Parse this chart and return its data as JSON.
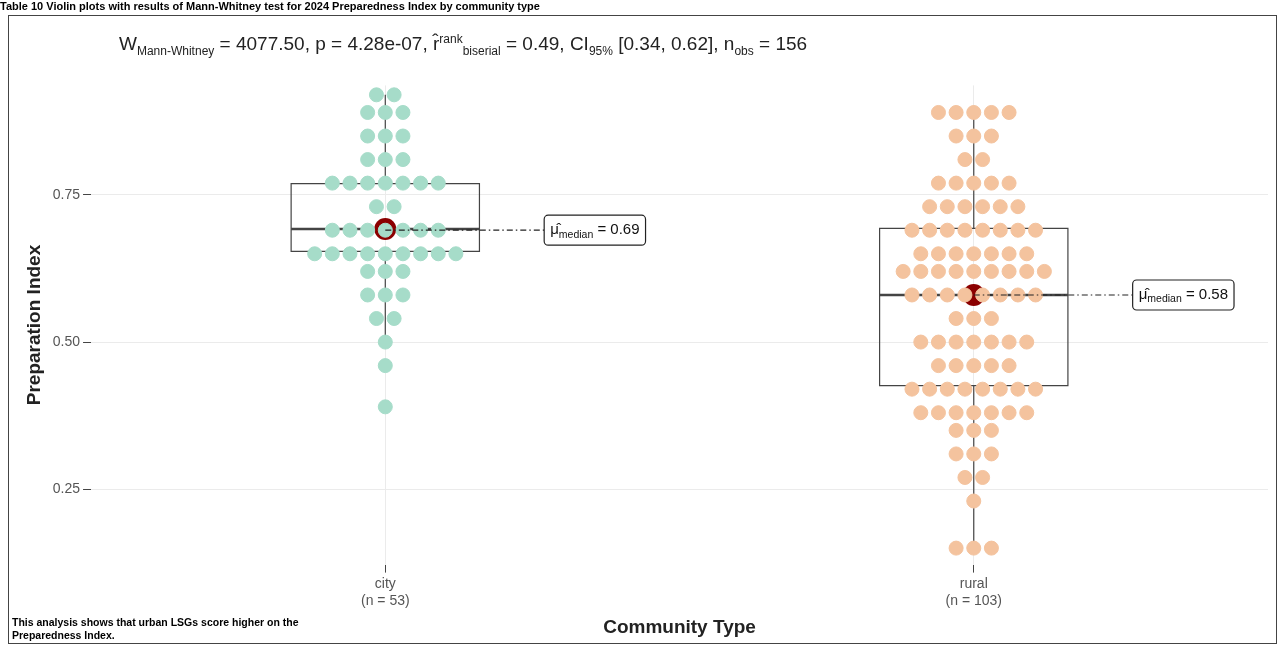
{
  "chart_data": {
    "type": "box",
    "title": "W$_{Mann-Whitney}$ = 4077.50, p = 4.28e-07, r̂$^{rank}$$_{biserial}$ = 0.49, CI$_{95%}$ [0.34, 0.62], n$_{obs}$ = 156",
    "xlabel": "Community Type",
    "ylabel": "Preparation Index",
    "categories": [
      "city\n(n = 53)",
      "rural\n(n = 103)"
    ],
    "boxes": [
      {
        "low": 0.5,
        "q1": 0.654,
        "median": 0.692,
        "q3": 0.769,
        "high": 0.92
      },
      {
        "low": 0.155,
        "q1": 0.426,
        "median": 0.58,
        "q3": 0.693,
        "high": 0.887
      }
    ],
    "series": [
      {
        "type": "scatter",
        "color": "#a6dcc9",
        "x": [
          "city\n(n = 53)",
          "city\n(n = 53)",
          "city\n(n = 53)",
          "city\n(n = 53)",
          "city\n(n = 53)",
          "city\n(n = 53)",
          "city\n(n = 53)",
          "city\n(n = 53)",
          "city\n(n = 53)",
          "city\n(n = 53)",
          "city\n(n = 53)",
          "city\n(n = 53)",
          "city\n(n = 53)",
          "city\n(n = 53)",
          "city\n(n = 53)",
          "city\n(n = 53)",
          "city\n(n = 53)",
          "city\n(n = 53)",
          "city\n(n = 53)",
          "city\n(n = 53)",
          "city\n(n = 53)",
          "city\n(n = 53)",
          "city\n(n = 53)",
          "city\n(n = 53)",
          "city\n(n = 53)",
          "city\n(n = 53)",
          "city\n(n = 53)",
          "city\n(n = 53)",
          "city\n(n = 53)",
          "city\n(n = 53)",
          "city\n(n = 53)",
          "city\n(n = 53)",
          "city\n(n = 53)",
          "city\n(n = 53)",
          "city\n(n = 53)",
          "city\n(n = 53)",
          "city\n(n = 53)",
          "city\n(n = 53)",
          "city\n(n = 53)",
          "city\n(n = 53)",
          "city\n(n = 53)",
          "city\n(n = 53)",
          "city\n(n = 53)",
          "city\n(n = 53)",
          "city\n(n = 53)",
          "city\n(n = 53)",
          "city\n(n = 53)"
        ],
        "values": [
          0.92,
          0.92,
          0.89,
          0.89,
          0.89,
          0.85,
          0.85,
          0.85,
          0.81,
          0.81,
          0.81,
          0.77,
          0.77,
          0.77,
          0.77,
          0.77,
          0.77,
          0.77,
          0.73,
          0.73,
          0.69,
          0.69,
          0.69,
          0.69,
          0.69,
          0.69,
          0.65,
          0.65,
          0.65,
          0.65,
          0.65,
          0.65,
          0.65,
          0.65,
          0.65,
          0.62,
          0.62,
          0.62,
          0.58,
          0.58,
          0.58,
          0.54,
          0.54,
          0.5,
          0.46,
          0.39,
          0.69
        ]
      },
      {
        "type": "scatter",
        "color": "#f4c39e",
        "x": [
          "rural\n(n = 103)",
          "rural\n(n = 103)",
          "rural\n(n = 103)",
          "rural\n(n = 103)",
          "rural\n(n = 103)",
          "rural\n(n = 103)",
          "rural\n(n = 103)",
          "rural\n(n = 103)",
          "rural\n(n = 103)",
          "rural\n(n = 103)",
          "rural\n(n = 103)",
          "rural\n(n = 103)",
          "rural\n(n = 103)",
          "rural\n(n = 103)",
          "rural\n(n = 103)",
          "rural\n(n = 103)",
          "rural\n(n = 103)",
          "rural\n(n = 103)",
          "rural\n(n = 103)",
          "rural\n(n = 103)",
          "rural\n(n = 103)",
          "rural\n(n = 103)",
          "rural\n(n = 103)",
          "rural\n(n = 103)",
          "rural\n(n = 103)",
          "rural\n(n = 103)",
          "rural\n(n = 103)",
          "rural\n(n = 103)",
          "rural\n(n = 103)",
          "rural\n(n = 103)",
          "rural\n(n = 103)",
          "rural\n(n = 103)",
          "rural\n(n = 103)",
          "rural\n(n = 103)",
          "rural\n(n = 103)",
          "rural\n(n = 103)",
          "rural\n(n = 103)",
          "rural\n(n = 103)",
          "rural\n(n = 103)",
          "rural\n(n = 103)",
          "rural\n(n = 103)",
          "rural\n(n = 103)",
          "rural\n(n = 103)",
          "rural\n(n = 103)",
          "rural\n(n = 103)",
          "rural\n(n = 103)",
          "rural\n(n = 103)",
          "rural\n(n = 103)",
          "rural\n(n = 103)",
          "rural\n(n = 103)",
          "rural\n(n = 103)",
          "rural\n(n = 103)",
          "rural\n(n = 103)",
          "rural\n(n = 103)",
          "rural\n(n = 103)",
          "rural\n(n = 103)",
          "rural\n(n = 103)",
          "rural\n(n = 103)",
          "rural\n(n = 103)",
          "rural\n(n = 103)",
          "rural\n(n = 103)",
          "rural\n(n = 103)",
          "rural\n(n = 103)",
          "rural\n(n = 103)",
          "rural\n(n = 103)",
          "rural\n(n = 103)",
          "rural\n(n = 103)",
          "rural\n(n = 103)",
          "rural\n(n = 103)",
          "rural\n(n = 103)",
          "rural\n(n = 103)",
          "rural\n(n = 103)",
          "rural\n(n = 103)",
          "rural\n(n = 103)",
          "rural\n(n = 103)",
          "rural\n(n = 103)",
          "rural\n(n = 103)",
          "rural\n(n = 103)",
          "rural\n(n = 103)",
          "rural\n(n = 103)",
          "rural\n(n = 103)",
          "rural\n(n = 103)",
          "rural\n(n = 103)",
          "rural\n(n = 103)",
          "rural\n(n = 103)",
          "rural\n(n = 103)",
          "rural\n(n = 103)",
          "rural\n(n = 103)",
          "rural\n(n = 103)",
          "rural\n(n = 103)",
          "rural\n(n = 103)",
          "rural\n(n = 103)",
          "rural\n(n = 103)",
          "rural\n(n = 103)",
          "rural\n(n = 103)"
        ],
        "values": [
          0.89,
          0.89,
          0.89,
          0.89,
          0.89,
          0.85,
          0.85,
          0.85,
          0.81,
          0.81,
          0.77,
          0.77,
          0.77,
          0.77,
          0.77,
          0.73,
          0.73,
          0.73,
          0.73,
          0.73,
          0.73,
          0.69,
          0.69,
          0.69,
          0.69,
          0.69,
          0.69,
          0.69,
          0.69,
          0.65,
          0.65,
          0.65,
          0.65,
          0.65,
          0.65,
          0.65,
          0.62,
          0.62,
          0.62,
          0.62,
          0.62,
          0.62,
          0.62,
          0.62,
          0.62,
          0.58,
          0.58,
          0.58,
          0.58,
          0.58,
          0.58,
          0.58,
          0.58,
          0.54,
          0.54,
          0.54,
          0.5,
          0.5,
          0.5,
          0.5,
          0.5,
          0.5,
          0.5,
          0.46,
          0.46,
          0.46,
          0.46,
          0.46,
          0.42,
          0.42,
          0.42,
          0.42,
          0.42,
          0.42,
          0.42,
          0.42,
          0.38,
          0.38,
          0.38,
          0.38,
          0.38,
          0.38,
          0.38,
          0.35,
          0.35,
          0.35,
          0.31,
          0.31,
          0.31,
          0.27,
          0.27,
          0.23,
          0.15,
          0.15,
          0.15
        ]
      }
    ],
    "ylim": [
      0.122,
      0.936
    ],
    "yticks": [
      {
        "value": 0.25,
        "label": "0.25"
      },
      {
        "value": 0.5,
        "label": "0.50"
      },
      {
        "value": 0.75,
        "label": "0.75"
      }
    ],
    "grid": true,
    "legend": false,
    "annotations": [
      "Table 10 Violin plots with results of Mann-Whitney test for 2024 Preparedness Index by community type",
      "This analysis shows that urban LSGs score higher on the Preparedness Index.",
      {
        "text": "μ̂$_{median}$ = 0.69",
        "x": "city\n(n = 53)",
        "y": 0.69
      },
      {
        "text": "μ̂$_{median}$ = 0.58",
        "x": "rural\n(n = 103)",
        "y": 0.58
      }
    ]
  }
}
